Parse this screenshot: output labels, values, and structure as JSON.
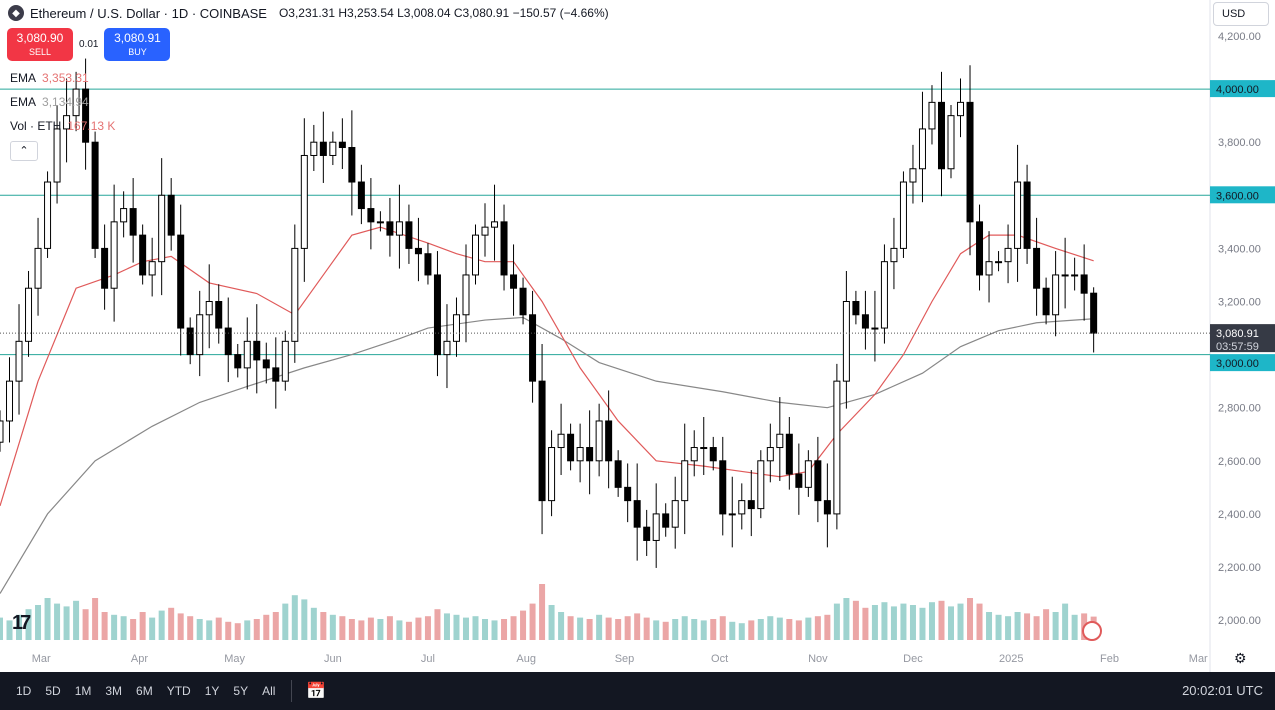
{
  "header": {
    "symbol_title": "Ethereum / U.S. Dollar · 1D · COINBASE",
    "open": "3,231.31",
    "high": "3,253.54",
    "low": "3,008.04",
    "close": "3,080.91",
    "change": "−150.57 (−4.66%)",
    "o_label": "O",
    "h_label": "H",
    "l_label": "L",
    "c_label": "C"
  },
  "trade": {
    "sell_price": "3,080.90",
    "sell_label": "SELL",
    "spread": "0.01",
    "buy_price": "3,080.91",
    "buy_label": "BUY"
  },
  "indicators": [
    {
      "name": "EMA",
      "value": "3,353.31",
      "color": "#e57373"
    },
    {
      "name": "EMA",
      "value": "3,134.94",
      "color": "#9e9e9e"
    },
    {
      "name": "Vol · ETH",
      "value": "167.13 K",
      "color": "#e57373"
    }
  ],
  "currency": "USD",
  "bottom": {
    "ranges": [
      "1D",
      "5D",
      "1M",
      "3M",
      "6M",
      "YTD",
      "1Y",
      "5Y",
      "All"
    ],
    "clock": "20:02:01 UTC"
  },
  "colors": {
    "up": "#ffffff",
    "down": "#000000",
    "ema50": "#e05a5a",
    "ema200": "#888888",
    "hline": "#26a69a",
    "vol_up": "#9fd3cf",
    "vol_down": "#eba6a6",
    "last_price_bg": "#363a45",
    "level_bg": "#1eb6c8"
  },
  "chart_data": {
    "type": "candlestick",
    "interval_days": 3,
    "start_date": "2024-02-17",
    "ylim": [
      1900,
      4250
    ],
    "y_ticks": [
      2000,
      2200,
      2400,
      2600,
      2800,
      3000,
      3200,
      3400,
      3600,
      3800,
      4000,
      4200
    ],
    "y_tick_labels": [
      "2,000.00",
      "2,200.00",
      "2,400.00",
      "2,600.00",
      "2,800.00",
      "3,000.00",
      "3,200.00",
      "3,400.00",
      "3,600.00",
      "3,800.00",
      "4,000.00",
      "4,200.00"
    ],
    "x_ticks": [
      {
        "label": "Mar",
        "date": "2024-03-01"
      },
      {
        "label": "Apr",
        "date": "2024-04-01"
      },
      {
        "label": "May",
        "date": "2024-05-01"
      },
      {
        "label": "Jun",
        "date": "2024-06-01"
      },
      {
        "label": "Jul",
        "date": "2024-07-01"
      },
      {
        "label": "Aug",
        "date": "2024-08-01"
      },
      {
        "label": "Sep",
        "date": "2024-09-01"
      },
      {
        "label": "Oct",
        "date": "2024-10-01"
      },
      {
        "label": "Nov",
        "date": "2024-11-01"
      },
      {
        "label": "Dec",
        "date": "2024-12-01"
      },
      {
        "label": "2025",
        "date": "2025-01-01"
      },
      {
        "label": "Feb",
        "date": "2025-02-01"
      },
      {
        "label": "Mar",
        "date": "2025-03-01"
      }
    ],
    "closes": [
      2750,
      2900,
      3050,
      3250,
      3400,
      3650,
      3850,
      3900,
      4000,
      3800,
      3400,
      3250,
      3500,
      3550,
      3450,
      3300,
      3350,
      3600,
      3450,
      3100,
      3000,
      3150,
      3200,
      3100,
      3000,
      2950,
      3050,
      2980,
      2950,
      2900,
      3050,
      3400,
      3750,
      3800,
      3750,
      3800,
      3780,
      3650,
      3550,
      3500,
      3500,
      3450,
      3500,
      3400,
      3380,
      3300,
      3000,
      3050,
      3150,
      3300,
      3450,
      3480,
      3500,
      3300,
      3250,
      3150,
      2900,
      2450,
      2650,
      2700,
      2600,
      2650,
      2600,
      2750,
      2600,
      2500,
      2450,
      2350,
      2300,
      2400,
      2350,
      2450,
      2600,
      2650,
      2650,
      2600,
      2400,
      2400,
      2450,
      2420,
      2600,
      2650,
      2700,
      2550,
      2500,
      2600,
      2450,
      2400,
      2900,
      3200,
      3150,
      3100,
      3100,
      3350,
      3400,
      3650,
      3700,
      3850,
      3950,
      3700,
      3900,
      3950,
      3500,
      3300,
      3350,
      3350,
      3400,
      3650,
      3400,
      3250,
      3150,
      3300,
      3300,
      3300,
      3231.31,
      3080.91
    ],
    "last_candle": {
      "open": 3231.31,
      "high": 3253.54,
      "low": 3008.04,
      "close": 3080.91
    },
    "ema50": [
      [
        0,
        2430
      ],
      [
        4,
        2900
      ],
      [
        8,
        3250
      ],
      [
        12,
        3300
      ],
      [
        15,
        3350
      ],
      [
        18,
        3370
      ],
      [
        22,
        3270
      ],
      [
        27,
        3230
      ],
      [
        31,
        3150
      ],
      [
        34,
        3300
      ],
      [
        37,
        3450
      ],
      [
        40,
        3480
      ],
      [
        45,
        3420
      ],
      [
        48,
        3380
      ],
      [
        51,
        3350
      ],
      [
        54,
        3350
      ],
      [
        57,
        3200
      ],
      [
        61,
        2950
      ],
      [
        65,
        2750
      ],
      [
        69,
        2600
      ],
      [
        74,
        2580
      ],
      [
        78,
        2560
      ],
      [
        82,
        2540
      ],
      [
        85,
        2560
      ],
      [
        88,
        2700
      ],
      [
        92,
        2850
      ],
      [
        95,
        3000
      ],
      [
        98,
        3200
      ],
      [
        101,
        3380
      ],
      [
        104,
        3450
      ],
      [
        107,
        3450
      ],
      [
        111,
        3400
      ],
      [
        115,
        3353.31
      ]
    ],
    "ema200": [
      [
        0,
        2100
      ],
      [
        5,
        2400
      ],
      [
        10,
        2600
      ],
      [
        16,
        2730
      ],
      [
        21,
        2820
      ],
      [
        26,
        2880
      ],
      [
        32,
        2950
      ],
      [
        37,
        3000
      ],
      [
        42,
        3060
      ],
      [
        45,
        3100
      ],
      [
        51,
        3130
      ],
      [
        55,
        3140
      ],
      [
        59,
        3060
      ],
      [
        63,
        2970
      ],
      [
        69,
        2900
      ],
      [
        76,
        2860
      ],
      [
        82,
        2820
      ],
      [
        87,
        2800
      ],
      [
        92,
        2850
      ],
      [
        97,
        2930
      ],
      [
        101,
        3030
      ],
      [
        105,
        3090
      ],
      [
        109,
        3120
      ],
      [
        115,
        3134.94
      ]
    ],
    "volume": [
      160,
      140,
      180,
      220,
      250,
      300,
      260,
      240,
      280,
      220,
      300,
      200,
      180,
      170,
      150,
      200,
      160,
      210,
      230,
      190,
      170,
      150,
      140,
      160,
      130,
      120,
      140,
      150,
      180,
      200,
      260,
      320,
      290,
      230,
      200,
      180,
      170,
      150,
      140,
      160,
      150,
      170,
      140,
      130,
      160,
      170,
      220,
      190,
      180,
      160,
      170,
      150,
      140,
      150,
      170,
      210,
      260,
      400,
      250,
      200,
      170,
      160,
      150,
      180,
      160,
      150,
      170,
      190,
      160,
      140,
      130,
      150,
      170,
      150,
      140,
      150,
      170,
      130,
      120,
      140,
      150,
      170,
      160,
      150,
      140,
      160,
      170,
      180,
      260,
      300,
      280,
      230,
      250,
      270,
      240,
      260,
      250,
      230,
      270,
      280,
      240,
      260,
      300,
      260,
      200,
      180,
      170,
      200,
      190,
      170,
      220,
      200,
      260,
      180,
      190,
      167.13
    ],
    "horizontal_levels": [
      4000,
      3600,
      3000
    ],
    "level_labels": [
      "4,000.00",
      "3,600.00",
      "3,000.00"
    ],
    "last_price_label": "3,080.91",
    "countdown": "03:57:59"
  }
}
